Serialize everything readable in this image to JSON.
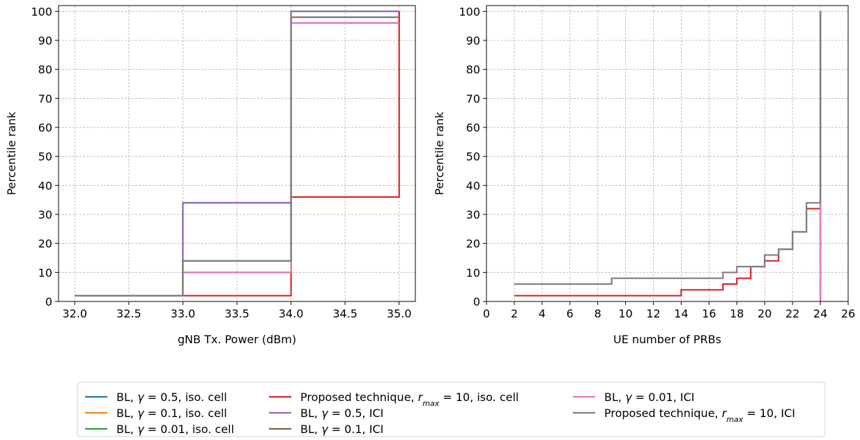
{
  "chart_data": [
    {
      "type": "line",
      "subtype": "step-cdf",
      "xlabel": "gNB Tx. Power (dBm)",
      "ylabel": "Percentile rank",
      "xlim": [
        31.85,
        35.15
      ],
      "ylim": [
        0,
        102
      ],
      "xticks": [
        32.0,
        32.5,
        33.0,
        33.5,
        34.0,
        34.5,
        35.0
      ],
      "xtick_labels": [
        "32.0",
        "32.5",
        "33.0",
        "33.5",
        "34.0",
        "34.5",
        "35.0"
      ],
      "yticks": [
        0,
        10,
        20,
        30,
        40,
        50,
        60,
        70,
        80,
        90,
        100
      ],
      "ytick_labels": [
        "0",
        "10",
        "20",
        "30",
        "40",
        "50",
        "60",
        "70",
        "80",
        "90",
        "100"
      ],
      "grid": true,
      "series": [
        {
          "name": "BL, γ = 0.5, iso. cell",
          "color": "#1f77b4",
          "x": [
            32,
            33,
            34,
            35
          ],
          "y": [
            2,
            34,
            100,
            100
          ]
        },
        {
          "name": "BL, γ = 0.1, iso. cell",
          "color": "#ff7f0e",
          "x": [
            32,
            33,
            34,
            35
          ],
          "y": [
            2,
            14,
            98,
            98
          ]
        },
        {
          "name": "BL, γ = 0.01, iso. cell",
          "color": "#2ca02c",
          "x": [
            32,
            33,
            34,
            35
          ],
          "y": [
            2,
            10,
            96,
            100
          ]
        },
        {
          "name": "Proposed technique, rmax = 10, iso. cell",
          "color": "#d62728",
          "x": [
            32,
            33,
            34,
            35
          ],
          "y": [
            2,
            2,
            36,
            100
          ]
        },
        {
          "name": "BL, γ = 0.5, ICI",
          "color": "#9467bd",
          "x": [
            32,
            33,
            34,
            35
          ],
          "y": [
            2,
            34,
            100,
            100
          ]
        },
        {
          "name": "BL, γ = 0.1, ICI",
          "color": "#8c564b",
          "x": [
            32,
            33,
            34,
            35
          ],
          "y": [
            2,
            14,
            98,
            98
          ]
        },
        {
          "name": "BL, γ = 0.01, ICI",
          "color": "#e377c2",
          "x": [
            32,
            33,
            34,
            35
          ],
          "y": [
            2,
            10,
            96,
            96
          ]
        },
        {
          "name": "Proposed technique, rmax = 10, ICI",
          "color": "#7f7f7f",
          "x": [
            32,
            33,
            34,
            35
          ],
          "y": [
            2,
            14,
            98,
            98
          ]
        }
      ]
    },
    {
      "type": "line",
      "subtype": "step-cdf",
      "xlabel": "UE number of PRBs",
      "ylabel": "Percentile rank",
      "xlim": [
        0,
        26
      ],
      "ylim": [
        0,
        102
      ],
      "xticks": [
        0,
        2,
        4,
        6,
        8,
        10,
        12,
        14,
        16,
        18,
        20,
        22,
        24,
        26
      ],
      "xtick_labels": [
        "0",
        "2",
        "4",
        "6",
        "8",
        "10",
        "12",
        "14",
        "16",
        "18",
        "20",
        "22",
        "24",
        "26"
      ],
      "yticks": [
        0,
        10,
        20,
        30,
        40,
        50,
        60,
        70,
        80,
        90,
        100
      ],
      "ytick_labels": [
        "0",
        "10",
        "20",
        "30",
        "40",
        "50",
        "60",
        "70",
        "80",
        "90",
        "100"
      ],
      "grid": true,
      "series": [
        {
          "name": "BL, γ = 0.5, iso. cell",
          "color": "#1f77b4",
          "x": [
            24,
            24
          ],
          "y": [
            0,
            100
          ]
        },
        {
          "name": "BL, γ = 0.1, iso. cell",
          "color": "#ff7f0e",
          "x": [
            24,
            24
          ],
          "y": [
            0,
            100
          ]
        },
        {
          "name": "BL, γ = 0.01, iso. cell",
          "color": "#2ca02c",
          "x": [
            24,
            24
          ],
          "y": [
            0,
            100
          ]
        },
        {
          "name": "Proposed technique, rmax = 10, iso. cell",
          "color": "#d62728",
          "x": [
            2,
            14,
            17,
            18,
            19,
            20,
            21,
            22,
            23,
            24
          ],
          "y": [
            2,
            4,
            6,
            8,
            12,
            14,
            18,
            24,
            32,
            100
          ]
        },
        {
          "name": "BL, γ = 0.5, ICI",
          "color": "#9467bd",
          "x": [
            24,
            24
          ],
          "y": [
            0,
            100
          ]
        },
        {
          "name": "BL, γ = 0.1, ICI",
          "color": "#8c564b",
          "x": [
            24,
            24
          ],
          "y": [
            0,
            100
          ]
        },
        {
          "name": "BL, γ = 0.01, ICI",
          "color": "#e377c2",
          "x": [
            24,
            24
          ],
          "y": [
            0,
            100
          ]
        },
        {
          "name": "Proposed technique, rmax = 10, ICI",
          "color": "#7f7f7f",
          "x": [
            2,
            9,
            17,
            18,
            20,
            21,
            22,
            23,
            24
          ],
          "y": [
            6,
            8,
            10,
            12,
            16,
            18,
            24,
            34,
            100
          ]
        }
      ]
    }
  ],
  "legend": {
    "placement": "bottom-center",
    "columns": 3,
    "entries": [
      {
        "color": "#1f77b4",
        "parts": [
          {
            "t": "BL, "
          },
          {
            "t": "γ",
            "i": true
          },
          {
            "t": " = 0.5, iso. cell"
          }
        ]
      },
      {
        "color": "#ff7f0e",
        "parts": [
          {
            "t": "BL, "
          },
          {
            "t": "γ",
            "i": true
          },
          {
            "t": " = 0.1, iso. cell"
          }
        ]
      },
      {
        "color": "#2ca02c",
        "parts": [
          {
            "t": "BL, "
          },
          {
            "t": "γ",
            "i": true
          },
          {
            "t": " = 0.01, iso. cell"
          }
        ]
      },
      {
        "color": "#d62728",
        "parts": [
          {
            "t": "Proposed technique, "
          },
          {
            "t": "r",
            "i": true
          },
          {
            "t": "max",
            "i": true,
            "sub": true
          },
          {
            "t": " = 10, iso. cell"
          }
        ]
      },
      {
        "color": "#9467bd",
        "parts": [
          {
            "t": "BL, "
          },
          {
            "t": "γ",
            "i": true
          },
          {
            "t": " = 0.5, ICI"
          }
        ]
      },
      {
        "color": "#8c564b",
        "parts": [
          {
            "t": "BL, "
          },
          {
            "t": "γ",
            "i": true
          },
          {
            "t": " = 0.1, ICI"
          }
        ]
      },
      {
        "color": "#e377c2",
        "parts": [
          {
            "t": "BL, "
          },
          {
            "t": "γ",
            "i": true
          },
          {
            "t": " = 0.01, ICI"
          }
        ]
      },
      {
        "color": "#7f7f7f",
        "parts": [
          {
            "t": "Proposed technique, "
          },
          {
            "t": "r",
            "i": true
          },
          {
            "t": "max",
            "i": true,
            "sub": true
          },
          {
            "t": " = 10, ICI"
          }
        ]
      }
    ]
  }
}
